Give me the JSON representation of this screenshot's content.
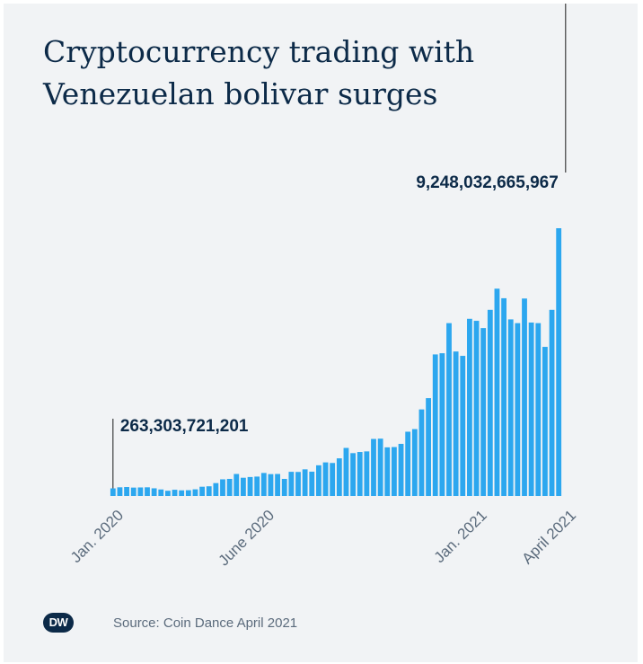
{
  "header": {
    "title_line1": "Cryptocurrency trading with",
    "title_line2": "Venezuelan bolivar surges"
  },
  "footer": {
    "logo_text": "DW",
    "source": "Source: Coin Dance April 2021"
  },
  "colors": {
    "bar": "#2ca7ef",
    "text": "#0c2a48",
    "axis_label": "#5b6b7c",
    "background": "#f1f3f5"
  },
  "chart_data": {
    "type": "bar",
    "title": "Cryptocurrency trading with Venezuelan bolivar surges",
    "xlabel": "",
    "ylabel": "",
    "grid": false,
    "legend": "none",
    "ylim": [
      0,
      9248032665967
    ],
    "x_tick_labels": [
      {
        "label": "Jan. 2020",
        "bar_index": 0
      },
      {
        "label": "June 2020",
        "bar_index": 22
      },
      {
        "label": "Jan. 2021",
        "bar_index": 53
      },
      {
        "label": "April 2021",
        "bar_index": 66
      }
    ],
    "annotations": [
      {
        "text": "263,303,721,201",
        "bar_index": 0
      },
      {
        "text": "9,248,032,665,967",
        "bar_index": 66
      }
    ],
    "values": [
      263303721201,
      300000000000,
      310000000000,
      290000000000,
      295000000000,
      300000000000,
      265000000000,
      225000000000,
      180000000000,
      215000000000,
      195000000000,
      200000000000,
      230000000000,
      320000000000,
      335000000000,
      445000000000,
      575000000000,
      590000000000,
      760000000000,
      630000000000,
      655000000000,
      670000000000,
      795000000000,
      755000000000,
      760000000000,
      590000000000,
      835000000000,
      830000000000,
      920000000000,
      840000000000,
      1060000000000,
      1160000000000,
      1140000000000,
      1300000000000,
      1660000000000,
      1480000000000,
      1520000000000,
      1540000000000,
      1970000000000,
      1980000000000,
      1680000000000,
      1690000000000,
      1800000000000,
      2220000000000,
      2310000000000,
      2990000000000,
      3380000000000,
      4890000000000,
      4930000000000,
      5970000000000,
      4990000000000,
      4840000000000,
      6120000000000,
      6050000000000,
      5800000000000,
      6430000000000,
      7160000000000,
      6830000000000,
      6100000000000,
      5970000000000,
      6820000000000,
      5990000000000,
      5970000000000,
      5150000000000,
      6430000000000,
      9248032665967
    ]
  }
}
